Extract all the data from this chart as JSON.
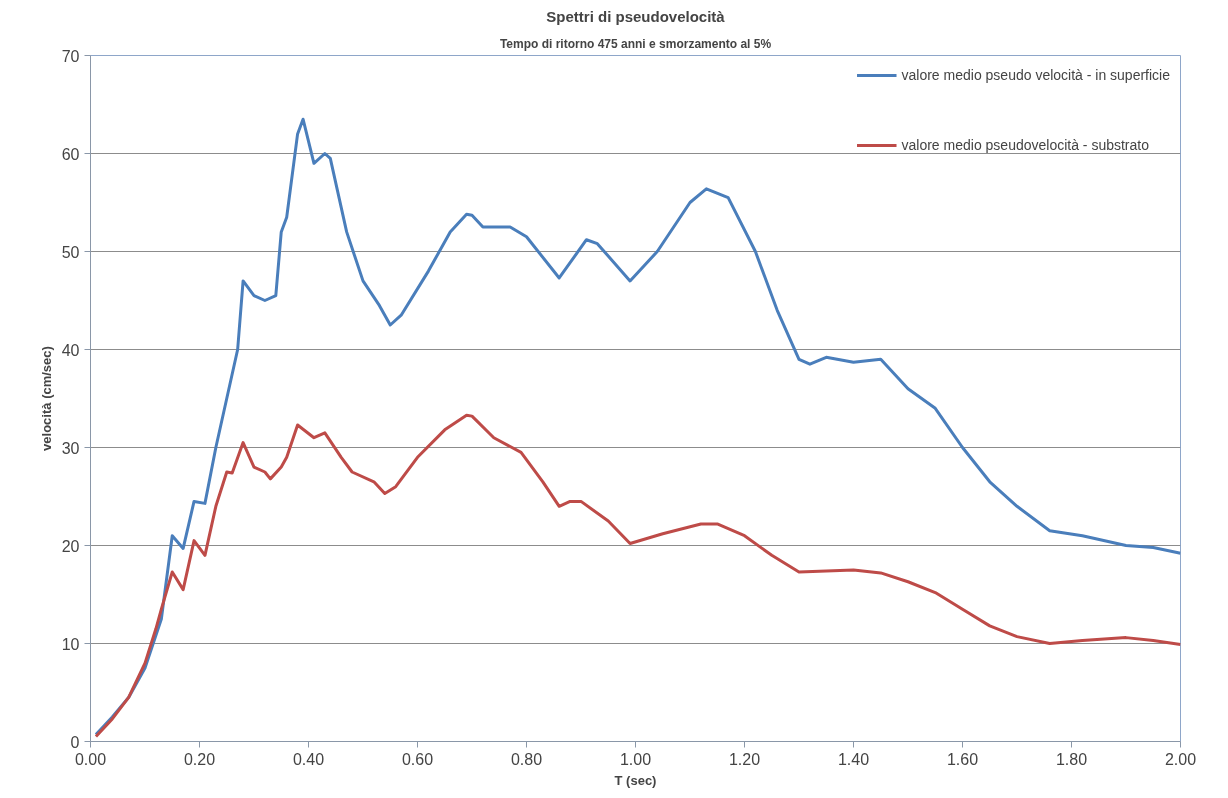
{
  "chart_data": {
    "type": "line",
    "title": "Spettri di pseudovelocità",
    "subtitle": "Tempo di ritorno 475 anni e smorzamento al 5%",
    "xlabel": "T (sec)",
    "ylabel": "velocità (cm/sec)",
    "xlim": [
      0,
      2
    ],
    "ylim": [
      0,
      70
    ],
    "xticks": [
      {
        "value": 0,
        "label": "0.00"
      },
      {
        "value": 0.2,
        "label": "0.20"
      },
      {
        "value": 0.4,
        "label": "0.40"
      },
      {
        "value": 0.6,
        "label": "0.60"
      },
      {
        "value": 0.8,
        "label": "0.80"
      },
      {
        "value": 1,
        "label": "1.00"
      },
      {
        "value": 1.2,
        "label": "1.20"
      },
      {
        "value": 1.4,
        "label": "1.40"
      },
      {
        "value": 1.6,
        "label": "1.60"
      },
      {
        "value": 1.8,
        "label": "1.80"
      },
      {
        "value": 2,
        "label": "2.00"
      }
    ],
    "yticks": [
      0,
      10,
      20,
      30,
      40,
      50,
      60,
      70
    ],
    "grid": "y",
    "legend": "top right",
    "marker": "none",
    "line_style": "solid",
    "series": [
      {
        "name": "valore medio pseudo velocità - in superficie",
        "color": "#4a7ebb",
        "x": [
          0.01,
          0.04,
          0.07,
          0.1,
          0.13,
          0.15,
          0.17,
          0.19,
          0.21,
          0.23,
          0.25,
          0.27,
          0.28,
          0.3,
          0.32,
          0.34,
          0.35,
          0.36,
          0.38,
          0.39,
          0.41,
          0.43,
          0.44,
          0.47,
          0.5,
          0.53,
          0.55,
          0.57,
          0.62,
          0.66,
          0.69,
          0.7,
          0.72,
          0.77,
          0.8,
          0.86,
          0.91,
          0.93,
          0.99,
          1.04,
          1.1,
          1.13,
          1.17,
          1.22,
          1.26,
          1.3,
          1.32,
          1.35,
          1.4,
          1.45,
          1.5,
          1.55,
          1.6,
          1.65,
          1.7,
          1.76,
          1.82,
          1.9,
          1.95,
          2.0
        ],
        "values": [
          0.7,
          2.5,
          4.5,
          7.5,
          12.5,
          21.0,
          19.7,
          24.5,
          24.3,
          30,
          35,
          40,
          47,
          45.5,
          45,
          45.5,
          52,
          53.5,
          62,
          63.5,
          59,
          60,
          59.5,
          52,
          47,
          44.5,
          42.5,
          43.5,
          48,
          52,
          53.8,
          53.7,
          52.5,
          52.5,
          51.5,
          47.3,
          51.2,
          50.8,
          47,
          50,
          55,
          56.4,
          55.5,
          50,
          44,
          39,
          38.5,
          39.2,
          38.7,
          39,
          36,
          34,
          30,
          26.5,
          24,
          21.5,
          21,
          20,
          19.8,
          19.2
        ]
      },
      {
        "name": "valore medio pseudovelocità - substrato",
        "color": "#be4b48",
        "x": [
          0.01,
          0.04,
          0.07,
          0.1,
          0.12,
          0.13,
          0.15,
          0.17,
          0.19,
          0.21,
          0.23,
          0.25,
          0.26,
          0.28,
          0.3,
          0.32,
          0.33,
          0.35,
          0.36,
          0.38,
          0.41,
          0.43,
          0.46,
          0.48,
          0.52,
          0.54,
          0.56,
          0.6,
          0.65,
          0.69,
          0.7,
          0.74,
          0.79,
          0.83,
          0.86,
          0.88,
          0.9,
          0.95,
          0.99,
          1.05,
          1.12,
          1.15,
          1.2,
          1.25,
          1.3,
          1.35,
          1.4,
          1.45,
          1.5,
          1.55,
          1.6,
          1.65,
          1.7,
          1.76,
          1.82,
          1.9,
          1.95,
          2.0
        ],
        "values": [
          0.5,
          2.3,
          4.5,
          8,
          11.5,
          13.5,
          17.3,
          15.5,
          20.5,
          19,
          24,
          27.5,
          27.4,
          30.5,
          28,
          27.5,
          26.8,
          28,
          29,
          32.3,
          31,
          31.5,
          29,
          27.5,
          26.5,
          25.3,
          26,
          29,
          31.8,
          33.3,
          33.2,
          31,
          29.5,
          26.5,
          24,
          24.5,
          24.5,
          22.5,
          20.2,
          21.2,
          22.2,
          22.2,
          21,
          19,
          17.3,
          17.4,
          17.5,
          17.2,
          16.3,
          15.2,
          13.5,
          11.8,
          10.7,
          10,
          10.3,
          10.6,
          10.3,
          9.9
        ]
      }
    ]
  }
}
